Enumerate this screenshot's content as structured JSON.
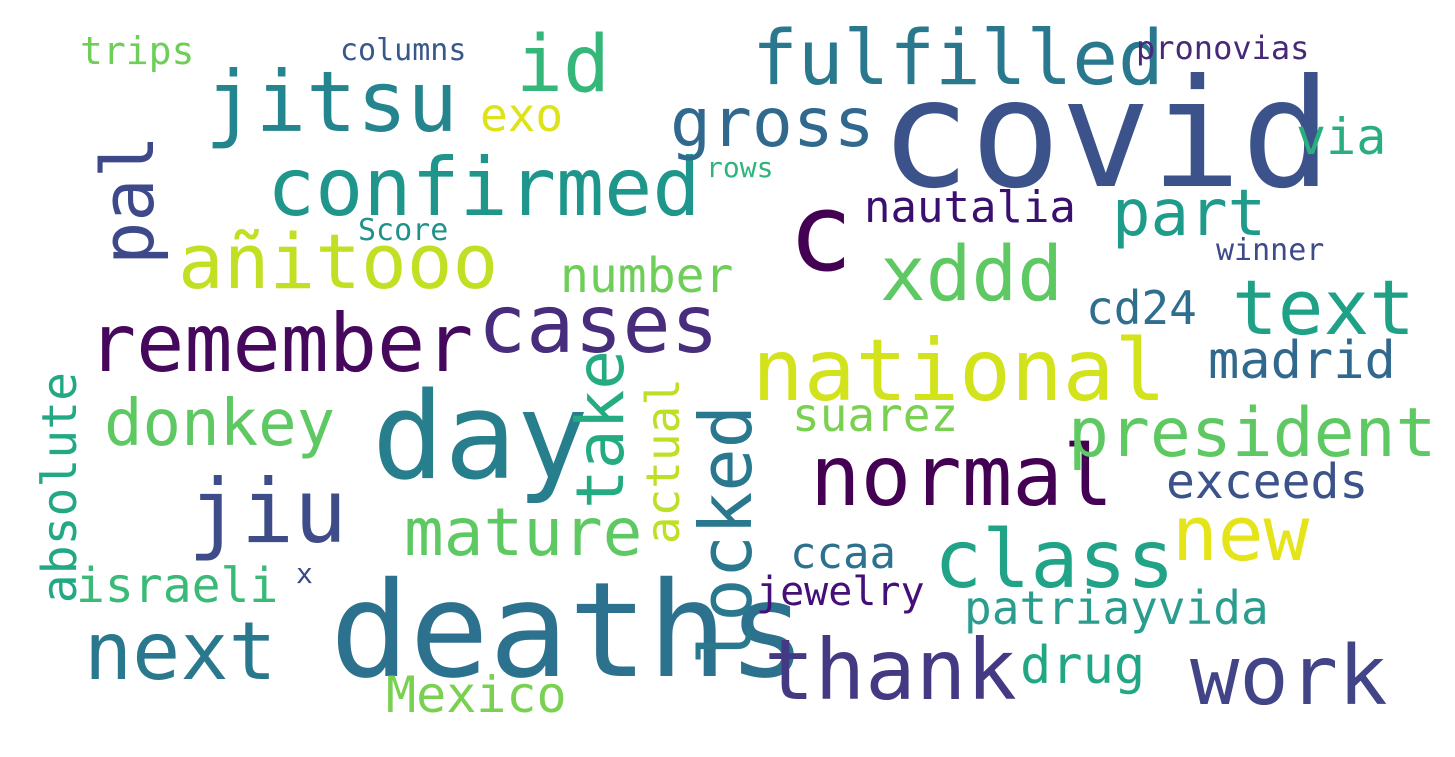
{
  "words": [
    {
      "text": "covid",
      "color": "#3b528b"
    },
    {
      "text": "deaths",
      "color": "#2c718e"
    },
    {
      "text": "day",
      "color": "#277f8e"
    },
    {
      "text": "c",
      "color": "#440154"
    },
    {
      "text": "jitsu",
      "color": "#25858e"
    },
    {
      "text": "confirmed",
      "color": "#1f968b"
    },
    {
      "text": "fulfilled",
      "color": "#2a788e"
    },
    {
      "text": "remember",
      "color": "#46085c"
    },
    {
      "text": "cases",
      "color": "#472d7b"
    },
    {
      "text": "national",
      "color": "#d2e21b"
    },
    {
      "text": "normal",
      "color": "#440154"
    },
    {
      "text": "añitooo",
      "color": "#c2df23"
    },
    {
      "text": "thank",
      "color": "#443a83"
    },
    {
      "text": "work",
      "color": "#414487"
    },
    {
      "text": "jiu",
      "color": "#3e4c8a"
    },
    {
      "text": "next",
      "color": "#2a788e"
    },
    {
      "text": "class",
      "color": "#20a386"
    },
    {
      "text": "president",
      "color": "#5ec962"
    },
    {
      "text": "xddd",
      "color": "#5ec962"
    },
    {
      "text": "gross",
      "color": "#31688e"
    },
    {
      "text": "text",
      "color": "#1fa187"
    },
    {
      "text": "new",
      "color": "#e4e419"
    },
    {
      "text": "donkey",
      "color": "#5ec962"
    },
    {
      "text": "mature",
      "color": "#5ec962"
    },
    {
      "text": "pal",
      "color": "#3e4989"
    },
    {
      "text": "id",
      "color": "#35b779"
    },
    {
      "text": "locked",
      "color": "#2a788e"
    },
    {
      "text": "take",
      "color": "#25ab82"
    },
    {
      "text": "part",
      "color": "#1e9b8a"
    },
    {
      "text": "madrid",
      "color": "#31688e"
    },
    {
      "text": "exceeds",
      "color": "#3b528b"
    },
    {
      "text": "patriayvida",
      "color": "#2a9d8f"
    },
    {
      "text": "Mexico",
      "color": "#7ad151"
    },
    {
      "text": "absolute",
      "color": "#22a884"
    },
    {
      "text": "actual",
      "color": "#bddf26"
    },
    {
      "text": "israeli",
      "color": "#3aba76"
    },
    {
      "text": "suarez",
      "color": "#7ad151"
    },
    {
      "text": "number",
      "color": "#6ece58"
    },
    {
      "text": "nautalia",
      "color": "#3b0f70"
    },
    {
      "text": "cd24",
      "color": "#2e6e8e"
    },
    {
      "text": "ccaa",
      "color": "#2c728e"
    },
    {
      "text": "drug",
      "color": "#22a785"
    },
    {
      "text": "jewelry",
      "color": "#440f76"
    },
    {
      "text": "exo",
      "color": "#dde318"
    },
    {
      "text": "via",
      "color": "#29af7f"
    },
    {
      "text": "trips",
      "color": "#6ece58"
    },
    {
      "text": "columns",
      "color": "#38588c"
    },
    {
      "text": "pronovias",
      "color": "#482878"
    },
    {
      "text": "rows",
      "color": "#2fb47c"
    },
    {
      "text": "Score",
      "color": "#21918c"
    },
    {
      "text": "winner",
      "color": "#3e4a89"
    },
    {
      "text": "x",
      "color": "#3e4989"
    }
  ]
}
